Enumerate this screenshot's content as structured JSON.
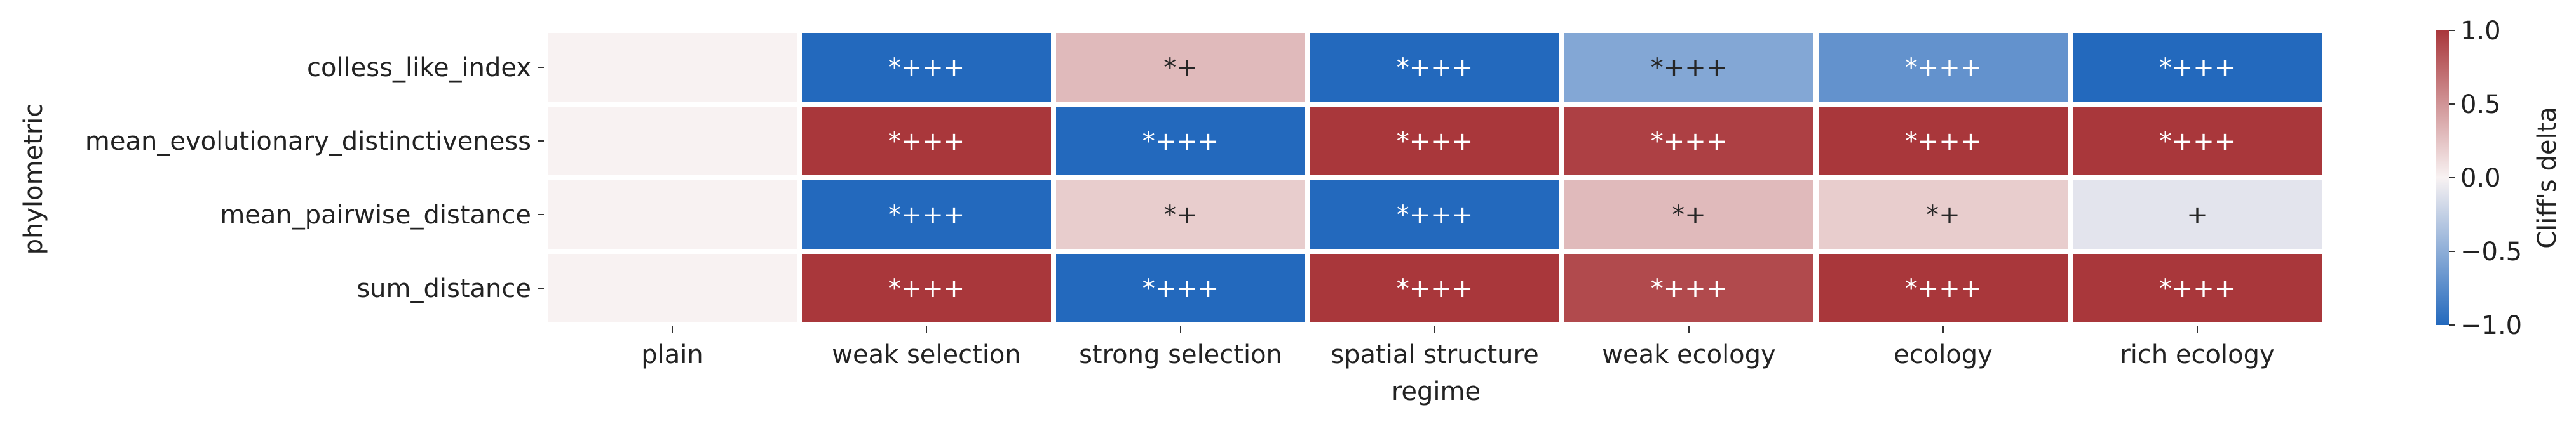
{
  "chart_data": {
    "type": "heatmap",
    "xlabel": "regime",
    "ylabel": "phylometric",
    "x_categories": [
      "plain",
      "weak selection",
      "strong selection",
      "spatial structure",
      "weak ecology",
      "ecology",
      "rich ecology"
    ],
    "y_categories": [
      "colless_like_index",
      "mean_evolutionary_distinctiveness",
      "mean_pairwise_distance",
      "sum_distance"
    ],
    "values": [
      [
        0.0,
        -1.0,
        0.3,
        -1.0,
        -0.55,
        -0.7,
        -1.0
      ],
      [
        0.0,
        1.0,
        -1.0,
        1.0,
        0.95,
        1.0,
        1.0
      ],
      [
        0.0,
        -1.0,
        0.2,
        -1.0,
        0.3,
        0.2,
        -0.1
      ],
      [
        0.0,
        1.0,
        -1.0,
        1.0,
        0.9,
        1.0,
        1.0
      ]
    ],
    "annotations": [
      [
        "",
        "*+++",
        "*+",
        "*+++",
        "*+++",
        "*+++",
        "*+++"
      ],
      [
        "",
        "*+++",
        "*+++",
        "*+++",
        "*+++",
        "*+++",
        "*+++"
      ],
      [
        "",
        "*+++",
        "*+",
        "*+++",
        "*+",
        "*+",
        "+"
      ],
      [
        "",
        "*+++",
        "*+++",
        "*+++",
        "*+++",
        "*+++",
        "*+++"
      ]
    ],
    "colorbar": {
      "label": "Cliff's delta",
      "range": [
        -1.0,
        1.0
      ],
      "ticks": [
        "1.0",
        "0.5",
        "0.0",
        "−0.5",
        "−1.0"
      ],
      "tick_values": [
        1.0,
        0.5,
        0.0,
        -0.5,
        -1.0
      ],
      "colors": {
        "low": "#2369bd",
        "mid": "#f8f2f2",
        "high": "#a9373b"
      }
    }
  }
}
